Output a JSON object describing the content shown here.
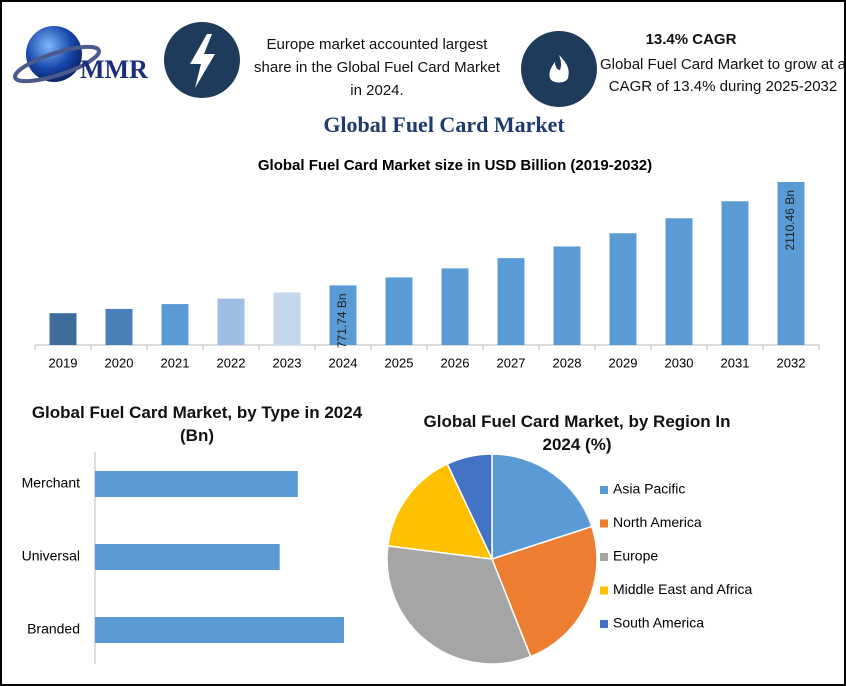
{
  "header": {
    "logo": "MMR",
    "europe_note": "Europe market accounted largest share in the Global Fuel Card Market in 2024.",
    "cagr_title": "13.4% CAGR",
    "cagr_text": "Global Fuel Card Market to grow at a CAGR of 13.4% during 2025-2032",
    "title": "Global Fuel Card Market"
  },
  "chart_data": [
    {
      "type": "bar",
      "title": "Global Fuel Card Market size in USD Billion (2019-2032)",
      "categories": [
        "2019",
        "2020",
        "2021",
        "2022",
        "2023",
        "2024",
        "2025",
        "2026",
        "2027",
        "2028",
        "2029",
        "2030",
        "2031",
        "2032"
      ],
      "values": [
        412,
        467,
        530,
        600,
        680,
        771.74,
        875,
        992,
        1125,
        1276,
        1447,
        1641,
        1861,
        2110.46
      ],
      "value_labels": [
        null,
        null,
        null,
        null,
        null,
        "771.74 Bn",
        null,
        null,
        null,
        null,
        null,
        null,
        null,
        "2110.46 Bn"
      ],
      "colors": [
        "#3e6d9c",
        "#4a80b8",
        "#5b9bd5",
        "#9dbde3",
        "#c5d7ee",
        "#5b9bd5",
        "#5b9bd5",
        "#5b9bd5",
        "#5b9bd5",
        "#5b9bd5",
        "#5b9bd5",
        "#5b9bd5",
        "#5b9bd5",
        "#5b9bd5"
      ]
    },
    {
      "type": "hbar",
      "title": "Global Fuel Card Market, by Type  in 2024 (Bn)",
      "categories": [
        "Merchant",
        "Universal",
        "Branded"
      ],
      "values": [
        246,
        224,
        302
      ],
      "color": "#5b9bd5"
    },
    {
      "type": "pie",
      "title": "Global Fuel Card Market, by Region In 2024 (%)",
      "categories": [
        "Asia Pacific",
        "North America",
        "Europe",
        "Middle East and Africa",
        "South America"
      ],
      "values": [
        20,
        24,
        33,
        16,
        7
      ],
      "colors": [
        "#5b9bd5",
        "#ed7d31",
        "#a5a5a5",
        "#ffc000",
        "#4472c4"
      ],
      "legend": "right"
    }
  ]
}
